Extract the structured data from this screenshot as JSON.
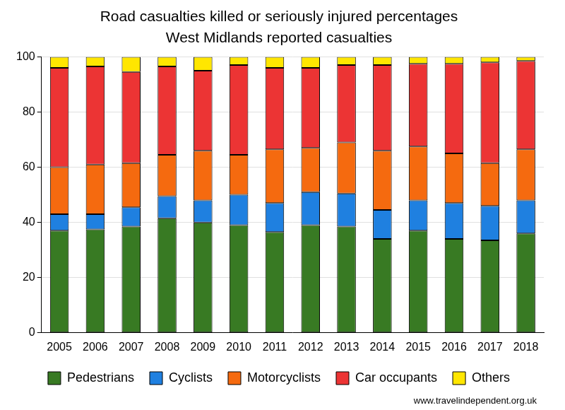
{
  "chart_data": {
    "type": "bar",
    "title": "Road casualties killed or seriously injured percentages",
    "subtitle": "West Midlands reported casualties",
    "source": "www.travelindependent.org.uk",
    "categories": [
      "2005",
      "2006",
      "2007",
      "2008",
      "2009",
      "2010",
      "2011",
      "2012",
      "2013",
      "2014",
      "2015",
      "2016",
      "2017",
      "2018"
    ],
    "series": [
      {
        "name": "Pedestrians",
        "color": "#387a23",
        "values": [
          37,
          37.5,
          38.5,
          41.5,
          40,
          39,
          36.5,
          39,
          38.5,
          34,
          37,
          34,
          33.5,
          36
        ]
      },
      {
        "name": "Cyclists",
        "color": "#1f80e0",
        "values": [
          6,
          5.5,
          7,
          8,
          8,
          11,
          10.5,
          12,
          12,
          10.5,
          11,
          13,
          12.5,
          12
        ]
      },
      {
        "name": "Motorcyclists",
        "color": "#f56a0f",
        "values": [
          17,
          18,
          16,
          15,
          18,
          14.5,
          19.5,
          16,
          18.5,
          21.5,
          19.5,
          18,
          15.5,
          18.5
        ]
      },
      {
        "name": "Car occupants",
        "color": "#ec3434",
        "values": [
          36,
          35.5,
          33,
          32,
          29,
          32.5,
          29.5,
          29,
          28,
          31,
          30,
          32.5,
          36.5,
          32
        ]
      },
      {
        "name": "Others",
        "color": "#ffe600",
        "values": [
          4,
          3.5,
          5.5,
          3.5,
          5,
          3,
          4,
          4,
          3,
          3,
          2.5,
          2.5,
          2,
          1.5
        ]
      }
    ],
    "ylim": [
      0,
      100
    ],
    "yticks": [
      0,
      20,
      40,
      60,
      80,
      100
    ],
    "stacked": true,
    "grid": true,
    "legend": "bottom"
  }
}
